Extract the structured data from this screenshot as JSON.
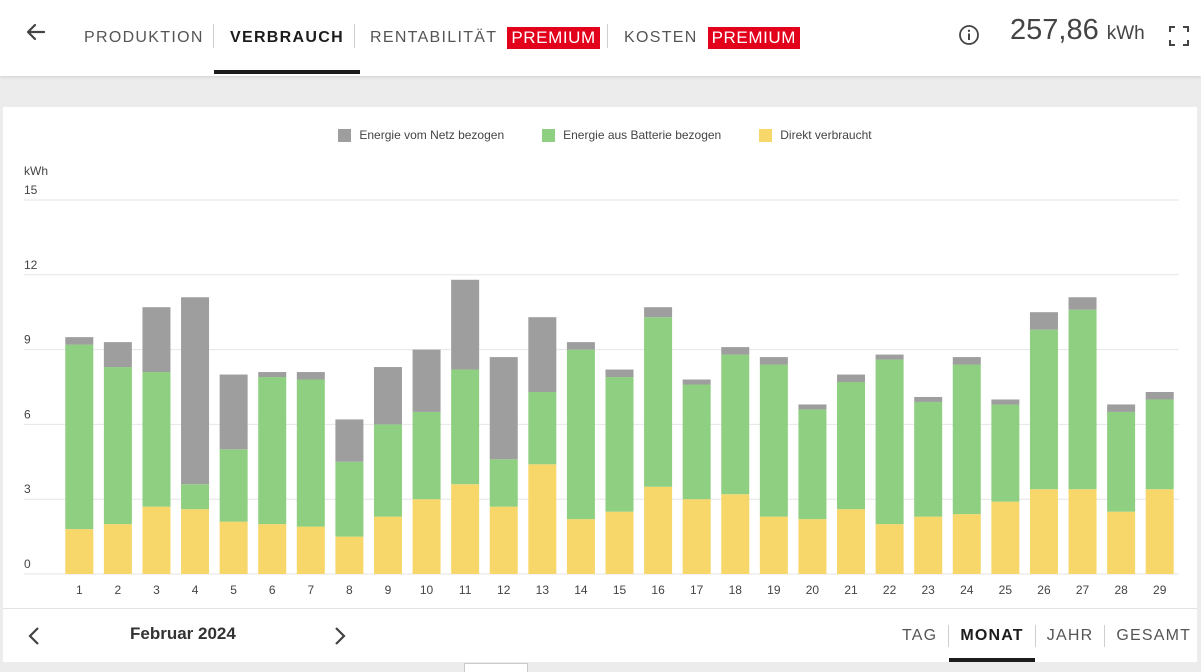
{
  "header": {
    "tabs": [
      {
        "label": "PRODUKTION",
        "active": false,
        "badge": ""
      },
      {
        "label": "VERBRAUCH",
        "active": true,
        "badge": ""
      },
      {
        "label": "RENTABILITÄT",
        "active": false,
        "badge": "PREMIUM"
      },
      {
        "label": "KOSTEN",
        "active": false,
        "badge": "PREMIUM"
      }
    ],
    "total_value": "257,86",
    "total_unit": "kWh",
    "icons": {
      "back": "arrow-left-icon",
      "info": "info-icon",
      "fullscreen": "fullscreen-icon"
    }
  },
  "footer": {
    "period": "Februar 2024",
    "range_tabs": [
      {
        "label": "TAG",
        "active": false
      },
      {
        "label": "MONAT",
        "active": true
      },
      {
        "label": "JAHR",
        "active": false
      },
      {
        "label": "GESAMT",
        "active": false
      }
    ]
  },
  "colors": {
    "grid": "#9e9e9e",
    "battery": "#8fcf81",
    "direct": "#f8d76a",
    "badge": "#e2001a"
  },
  "chart_data": {
    "type": "bar",
    "stacked": true,
    "ylabel": "kWh",
    "ylim": [
      0,
      15
    ],
    "yticks": [
      0,
      3,
      6,
      9,
      12,
      15
    ],
    "grid": true,
    "legend_position": "top-center",
    "categories": [
      "1",
      "2",
      "3",
      "4",
      "5",
      "6",
      "7",
      "8",
      "9",
      "10",
      "11",
      "12",
      "13",
      "14",
      "15",
      "16",
      "17",
      "18",
      "19",
      "20",
      "21",
      "22",
      "23",
      "24",
      "25",
      "26",
      "27",
      "28",
      "29"
    ],
    "series": [
      {
        "name": "Direkt verbraucht",
        "color": "#f8d76a",
        "values": [
          1.8,
          2.0,
          2.7,
          2.6,
          2.1,
          2.0,
          1.9,
          1.5,
          2.3,
          3.0,
          3.6,
          2.7,
          4.4,
          2.2,
          2.5,
          3.5,
          3.0,
          3.2,
          2.3,
          2.2,
          2.6,
          2.0,
          2.3,
          2.4,
          2.9,
          3.4,
          3.4,
          2.5,
          3.4
        ]
      },
      {
        "name": "Energie aus Batterie bezogen",
        "color": "#8fcf81",
        "values": [
          7.4,
          6.3,
          5.4,
          1.0,
          2.9,
          5.9,
          5.9,
          3.0,
          3.7,
          3.5,
          4.6,
          1.9,
          2.9,
          6.8,
          5.4,
          6.8,
          4.6,
          5.6,
          6.1,
          4.4,
          5.1,
          6.6,
          4.6,
          6.0,
          3.9,
          6.4,
          7.2,
          4.0,
          3.6
        ]
      },
      {
        "name": "Energie vom Netz bezogen",
        "color": "#9e9e9e",
        "values": [
          0.3,
          1.0,
          2.6,
          7.5,
          3.0,
          0.2,
          0.3,
          1.7,
          2.3,
          2.5,
          3.6,
          4.1,
          3.0,
          0.3,
          0.3,
          0.4,
          0.2,
          0.3,
          0.3,
          0.2,
          0.3,
          0.2,
          0.2,
          0.3,
          0.2,
          0.7,
          0.5,
          0.3,
          0.3
        ]
      }
    ],
    "legend": [
      "Energie vom Netz bezogen",
      "Energie aus Batterie bezogen",
      "Direkt verbraucht"
    ]
  }
}
